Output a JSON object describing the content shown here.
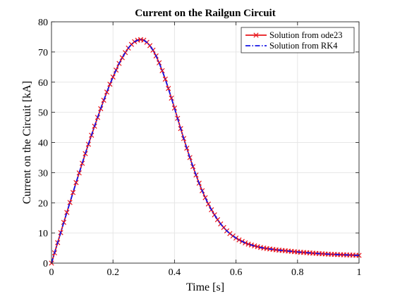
{
  "chart_data": {
    "type": "line",
    "title": "Current on the Railgun Circuit",
    "xlabel": "Time [s]",
    "ylabel": "Current on the Circuit [kA]",
    "xlim": [
      0,
      1
    ],
    "ylim": [
      0,
      80
    ],
    "x_ticks": [
      0,
      0.2,
      0.4,
      0.6,
      0.8,
      1
    ],
    "x_tick_labels": [
      "0",
      "0.2",
      "0.4",
      "0.6",
      "0.8",
      "1"
    ],
    "y_ticks": [
      0,
      10,
      20,
      30,
      40,
      50,
      60,
      70,
      80
    ],
    "y_tick_labels": [
      "0",
      "10",
      "20",
      "30",
      "40",
      "50",
      "60",
      "70",
      "80"
    ],
    "grid": true,
    "legend_position": "top-right",
    "colors": {
      "ode23": "#e8141a",
      "rk4": "#1414e6",
      "grid": "#e6e6e6",
      "axis": "#262626"
    },
    "series": [
      {
        "name": "Solution from ode23",
        "style": "solid-x-markers",
        "x": [
          0,
          0.01,
          0.02,
          0.03,
          0.04,
          0.05,
          0.06,
          0.07,
          0.08,
          0.09,
          0.1,
          0.11,
          0.12,
          0.13,
          0.14,
          0.15,
          0.16,
          0.17,
          0.18,
          0.19,
          0.2,
          0.21,
          0.22,
          0.23,
          0.24,
          0.25,
          0.26,
          0.27,
          0.28,
          0.29,
          0.3,
          0.31,
          0.32,
          0.33,
          0.34,
          0.35,
          0.36,
          0.37,
          0.38,
          0.39,
          0.4,
          0.41,
          0.42,
          0.43,
          0.44,
          0.45,
          0.46,
          0.47,
          0.48,
          0.49,
          0.5,
          0.51,
          0.52,
          0.53,
          0.54,
          0.55,
          0.56,
          0.57,
          0.58,
          0.59,
          0.6,
          0.61,
          0.62,
          0.63,
          0.64,
          0.65,
          0.66,
          0.67,
          0.68,
          0.69,
          0.7,
          0.71,
          0.72,
          0.73,
          0.74,
          0.75,
          0.76,
          0.77,
          0.78,
          0.79,
          0.8,
          0.81,
          0.82,
          0.83,
          0.84,
          0.85,
          0.86,
          0.87,
          0.88,
          0.89,
          0.9,
          0.91,
          0.92,
          0.93,
          0.94,
          0.95,
          0.96,
          0.97,
          0.98,
          0.99,
          1
        ],
        "values": [
          0,
          3.4,
          6.8,
          10.1,
          13.5,
          16.8,
          20.1,
          23.4,
          26.7,
          29.9,
          33.1,
          36.3,
          39.4,
          42.4,
          45.4,
          48.3,
          51.2,
          54.0,
          56.7,
          59.3,
          61.7,
          64.0,
          66.2,
          68.1,
          69.8,
          71.3,
          72.5,
          73.4,
          73.9,
          74.1,
          73.9,
          73.2,
          72.1,
          70.6,
          68.7,
          66.4,
          63.8,
          61.0,
          57.9,
          54.7,
          51.4,
          48.0,
          44.6,
          41.3,
          38.1,
          35.0,
          32.0,
          29.2,
          26.5,
          24.0,
          21.7,
          19.6,
          17.7,
          16.0,
          14.4,
          13.0,
          11.8,
          10.7,
          9.8,
          9.0,
          8.3,
          7.7,
          7.2,
          6.7,
          6.3,
          6.0,
          5.7,
          5.45,
          5.2,
          5.0,
          4.85,
          4.7,
          4.55,
          4.4,
          4.3,
          4.2,
          4.1,
          4.0,
          3.9,
          3.8,
          3.7,
          3.62,
          3.54,
          3.46,
          3.38,
          3.3,
          3.23,
          3.16,
          3.1,
          3.04,
          2.98,
          2.93,
          2.88,
          2.84,
          2.8,
          2.76,
          2.72,
          2.68,
          2.64,
          2.6,
          2.56
        ]
      },
      {
        "name": "Solution from RK4",
        "style": "dash-dot",
        "x": [
          0,
          0.01,
          0.02,
          0.03,
          0.04,
          0.05,
          0.06,
          0.07,
          0.08,
          0.09,
          0.1,
          0.11,
          0.12,
          0.13,
          0.14,
          0.15,
          0.16,
          0.17,
          0.18,
          0.19,
          0.2,
          0.21,
          0.22,
          0.23,
          0.24,
          0.25,
          0.26,
          0.27,
          0.28,
          0.29,
          0.3,
          0.31,
          0.32,
          0.33,
          0.34,
          0.35,
          0.36,
          0.37,
          0.38,
          0.39,
          0.4,
          0.41,
          0.42,
          0.43,
          0.44,
          0.45,
          0.46,
          0.47,
          0.48,
          0.49,
          0.5,
          0.51,
          0.52,
          0.53,
          0.54,
          0.55,
          0.56,
          0.57,
          0.58,
          0.59,
          0.6,
          0.61,
          0.62,
          0.63,
          0.64,
          0.65,
          0.66,
          0.67,
          0.68,
          0.69,
          0.7,
          0.71,
          0.72,
          0.73,
          0.74,
          0.75,
          0.76,
          0.77,
          0.78,
          0.79,
          0.8,
          0.81,
          0.82,
          0.83,
          0.84,
          0.85,
          0.86,
          0.87,
          0.88,
          0.89,
          0.9,
          0.91,
          0.92,
          0.93,
          0.94,
          0.95,
          0.96,
          0.97,
          0.98,
          0.99,
          1
        ],
        "values": [
          0,
          3.4,
          6.8,
          10.1,
          13.5,
          16.8,
          20.1,
          23.4,
          26.7,
          29.9,
          33.1,
          36.3,
          39.4,
          42.4,
          45.4,
          48.3,
          51.2,
          54.0,
          56.7,
          59.3,
          61.7,
          64.0,
          66.2,
          68.1,
          69.8,
          71.3,
          72.5,
          73.4,
          73.9,
          74.1,
          73.9,
          73.2,
          72.1,
          70.6,
          68.7,
          66.4,
          63.8,
          61.0,
          57.9,
          54.7,
          51.4,
          48.0,
          44.6,
          41.3,
          38.1,
          35.0,
          32.0,
          29.2,
          26.5,
          24.0,
          21.7,
          19.6,
          17.7,
          16.0,
          14.4,
          13.0,
          11.8,
          10.7,
          9.8,
          9.0,
          8.3,
          7.7,
          7.2,
          6.7,
          6.3,
          6.0,
          5.7,
          5.45,
          5.2,
          5.0,
          4.85,
          4.7,
          4.55,
          4.4,
          4.3,
          4.2,
          4.1,
          4.0,
          3.9,
          3.8,
          3.7,
          3.62,
          3.54,
          3.46,
          3.38,
          3.3,
          3.23,
          3.16,
          3.1,
          3.04,
          2.98,
          2.93,
          2.88,
          2.84,
          2.8,
          2.76,
          2.72,
          2.68,
          2.64,
          2.6,
          2.56
        ]
      }
    ]
  }
}
